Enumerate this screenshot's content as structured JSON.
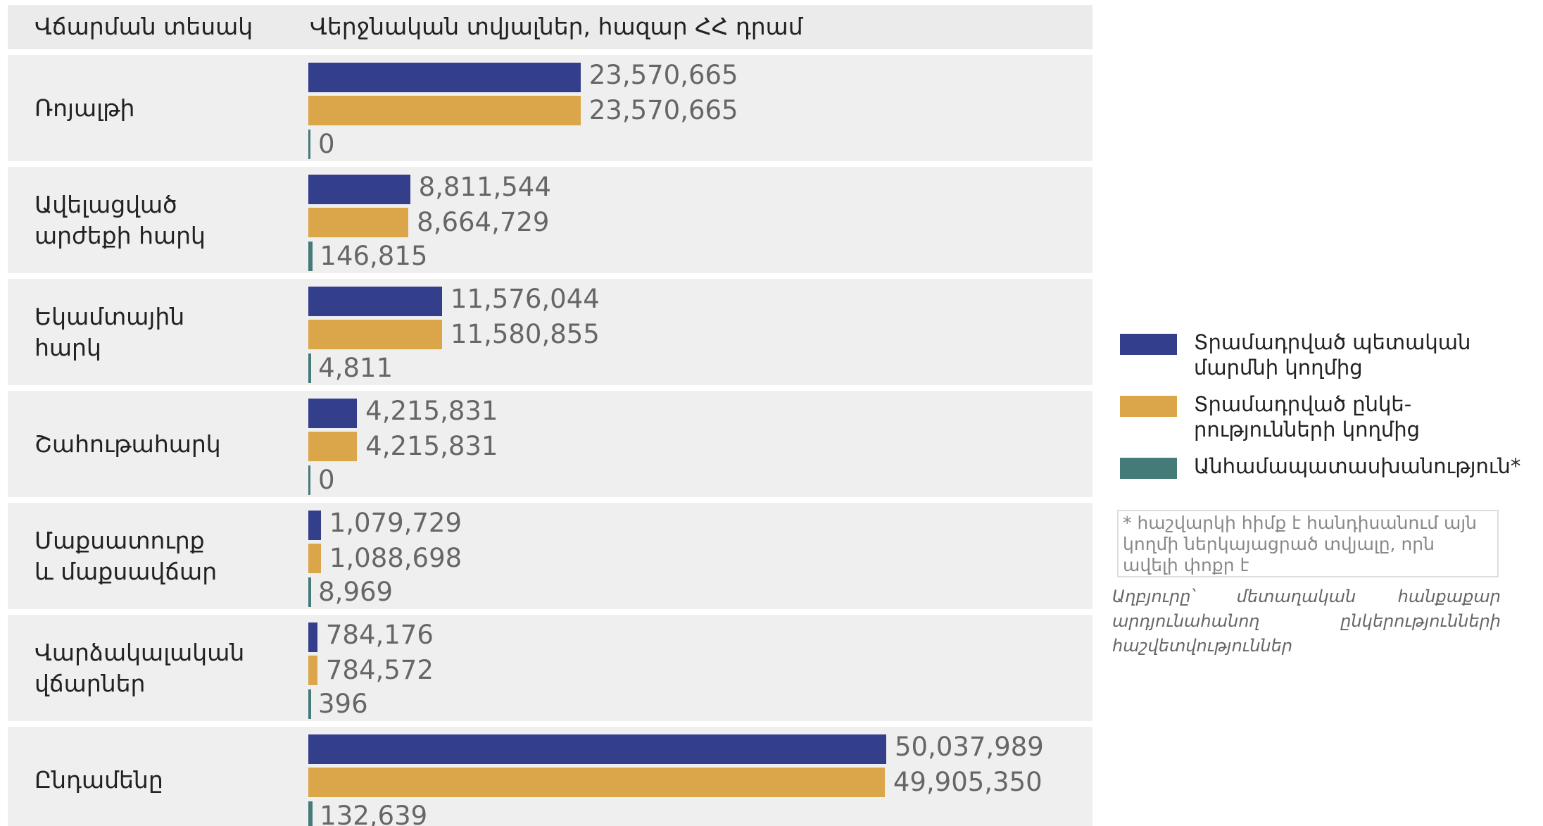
{
  "chart_data": {
    "type": "bar",
    "orientation": "horizontal",
    "column_headers": [
      "Վճարման տեսակ",
      "Վերջնական տվյալներ, հազար ՀՀ դրամ"
    ],
    "categories": [
      "Ռոյալթի",
      "Ավելացված\nարժեքի հարկ",
      "Եկամտային\nհարկ",
      "Շահութահարկ",
      "Մաքսատուրք\nև մաքսավճար",
      "Վարձակալական\nվճարներ",
      "Ընդամենը"
    ],
    "series": [
      {
        "name": "Տրամադրված պետական\nմարմնի կողմից",
        "color": "#343f8c",
        "values": [
          23570665,
          8811544,
          11576044,
          4215831,
          1079729,
          784176,
          50037989
        ],
        "value_labels": [
          "23,570,665",
          "8,811,544",
          "11,576,044",
          "4,215,831",
          "1,079,729",
          "784,176",
          "50,037,989"
        ]
      },
      {
        "name": "Տրամադրված ընկե-\nրությունների կողմից",
        "color": "#dba54a",
        "values": [
          23570665,
          8664729,
          11580855,
          4215831,
          1088698,
          784572,
          49905350
        ],
        "value_labels": [
          "23,570,665",
          "8,664,729",
          "11,580,855",
          "4,215,831",
          "1,088,698",
          "784,572",
          "49,905,350"
        ]
      },
      {
        "name": "Անհամապատասխանություն*",
        "color": "#447a78",
        "values": [
          0,
          146815,
          4811,
          0,
          8969,
          396,
          132639
        ],
        "value_labels": [
          "0",
          "146,815",
          "4,811",
          "0",
          "8,969",
          "396",
          "132,639"
        ]
      }
    ],
    "note": "* հաշվարկի հիմք է հանդիսանում այն կողմի ներկայացրած տվյալը, որն ավելի փոքր է",
    "source": "Աղբյուրը՝ մետաղական հանքաքար արդյունահանող ընկերությունների հաշվետվություններ"
  }
}
